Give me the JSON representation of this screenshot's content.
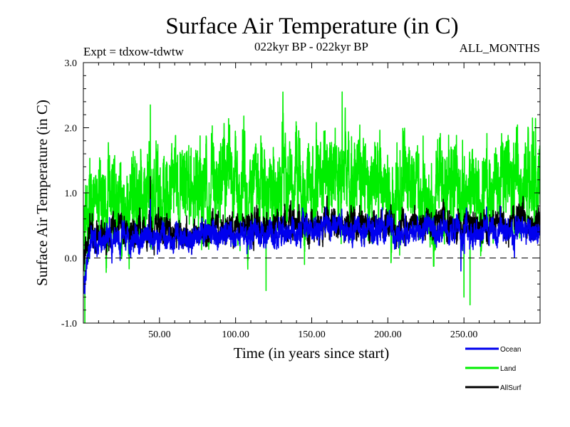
{
  "chart_data": {
    "type": "line",
    "title": "Surface Air Temperature (in C)",
    "subtitle_left": "Expt = tdxow-tdwtw",
    "subtitle_center": "022kyr BP - 022kyr BP",
    "subtitle_right": "ALL_MONTHS",
    "xlabel": "Time (in years since start)",
    "ylabel": "Surface Air Temperature (in C)",
    "xlim": [
      0,
      300
    ],
    "ylim": [
      -1.0,
      3.0
    ],
    "x_ticks": [
      50,
      100,
      150,
      200,
      250
    ],
    "x_tick_labels": [
      "50.00",
      "100.00",
      "150.00",
      "200.00",
      "250.00"
    ],
    "y_ticks": [
      -1.0,
      0.0,
      1.0,
      2.0,
      3.0
    ],
    "y_tick_labels": [
      "-1.0",
      "0.0",
      "1.0",
      "2.0",
      "3.0"
    ],
    "reference_line": 0.0,
    "samples_per_year": 12,
    "grid": false,
    "legend_placement": "bottom-right",
    "series": [
      {
        "name": "Land",
        "color": "#00ee00",
        "trend": [
          [
            0,
            0.3
          ],
          [
            5,
            0.75
          ],
          [
            30,
            0.95
          ],
          [
            100,
            1.0
          ],
          [
            160,
            1.15
          ],
          [
            250,
            1.1
          ],
          [
            300,
            1.15
          ]
        ],
        "noise": 0.45,
        "spikes": [
          [
            1,
            -1.0
          ],
          [
            44,
            2.35
          ],
          [
            120,
            -0.5
          ],
          [
            170,
            2.55
          ],
          [
            250,
            -0.6
          ],
          [
            254,
            -0.72
          ],
          [
            295,
            2.15
          ]
        ]
      },
      {
        "name": "AllSurf",
        "color": "#000000",
        "trend": [
          [
            0,
            -0.2
          ],
          [
            5,
            0.4
          ],
          [
            30,
            0.42
          ],
          [
            100,
            0.45
          ],
          [
            160,
            0.55
          ],
          [
            250,
            0.5
          ],
          [
            300,
            0.5
          ]
        ],
        "noise": 0.15,
        "spikes": [
          [
            44,
            1.25
          ],
          [
            160,
            0.95
          ]
        ]
      },
      {
        "name": "Ocean",
        "color": "#0000ee",
        "trend": [
          [
            0,
            -0.45
          ],
          [
            5,
            0.25
          ],
          [
            30,
            0.3
          ],
          [
            100,
            0.35
          ],
          [
            160,
            0.45
          ],
          [
            250,
            0.4
          ],
          [
            300,
            0.4
          ]
        ],
        "noise": 0.13,
        "spikes": [
          [
            1,
            -0.55
          ],
          [
            44,
            0.9
          ],
          [
            248,
            -0.2
          ]
        ]
      }
    ],
    "legend": [
      {
        "name": "Ocean",
        "color": "#0000ee"
      },
      {
        "name": "Land",
        "color": "#00ee00"
      },
      {
        "name": "AllSurf",
        "color": "#000000"
      }
    ]
  }
}
